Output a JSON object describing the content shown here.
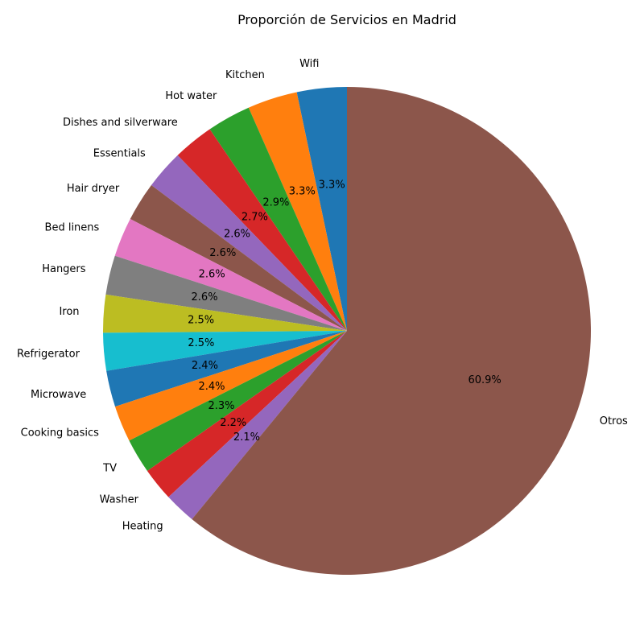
{
  "chart_data": {
    "type": "pie",
    "title": "Proporción de Servicios en Madrid",
    "start_angle_deg": 90,
    "direction": "counterclockwise",
    "slices": [
      {
        "label": "Wifi",
        "value": 3.3,
        "pct_label": "3.3%",
        "color": "#1f77b4"
      },
      {
        "label": "Kitchen",
        "value": 3.3,
        "pct_label": "3.3%",
        "color": "#ff7f0e"
      },
      {
        "label": "Hot water",
        "value": 2.9,
        "pct_label": "2.9%",
        "color": "#2ca02c"
      },
      {
        "label": "Dishes and silverware",
        "value": 2.7,
        "pct_label": "2.7%",
        "color": "#d62728"
      },
      {
        "label": "Essentials",
        "value": 2.6,
        "pct_label": "2.6%",
        "color": "#9467bd"
      },
      {
        "label": "Hair dryer",
        "value": 2.6,
        "pct_label": "2.6%",
        "color": "#8c564b"
      },
      {
        "label": "Bed linens",
        "value": 2.6,
        "pct_label": "2.6%",
        "color": "#e377c2"
      },
      {
        "label": "Hangers",
        "value": 2.6,
        "pct_label": "2.6%",
        "color": "#7f7f7f"
      },
      {
        "label": "Iron",
        "value": 2.5,
        "pct_label": "2.5%",
        "color": "#bcbd22"
      },
      {
        "label": "Refrigerator",
        "value": 2.5,
        "pct_label": "2.5%",
        "color": "#17becf"
      },
      {
        "label": "Microwave",
        "value": 2.4,
        "pct_label": "2.4%",
        "color": "#1f77b4"
      },
      {
        "label": "Cooking basics",
        "value": 2.4,
        "pct_label": "2.4%",
        "color": "#ff7f0e"
      },
      {
        "label": "TV",
        "value": 2.3,
        "pct_label": "2.3%",
        "color": "#2ca02c"
      },
      {
        "label": "Washer",
        "value": 2.2,
        "pct_label": "2.2%",
        "color": "#d62728"
      },
      {
        "label": "Heating",
        "value": 2.1,
        "pct_label": "2.1%",
        "color": "#9467bd"
      },
      {
        "label": "Otros",
        "value": 60.9,
        "pct_label": "60.9%",
        "color": "#8c564b"
      }
    ]
  }
}
